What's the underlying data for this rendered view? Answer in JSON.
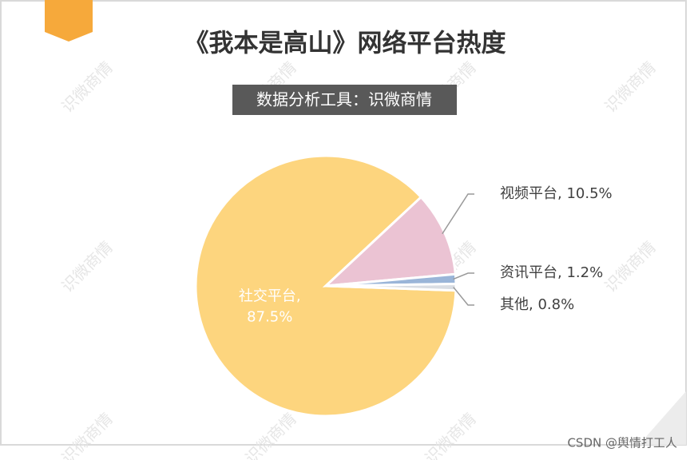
{
  "chart_data": {
    "type": "pie",
    "title": "《我本是高山》网络平台热度",
    "subtitle": "数据分析工具：识微商情",
    "values": [
      87.5,
      10.5,
      1.2,
      0.8
    ],
    "value_labels": [
      "社交平台, 87.5%",
      "视频平台, 10.5%",
      "资讯平台, 1.2%",
      "其他, 0.8%"
    ],
    "colors": [
      "#fdd57e",
      "#ebc3d3",
      "#9ab5d8",
      "#d9dde3"
    ],
    "watermark": "识微商情",
    "footer": "CSDN @舆情打工人"
  }
}
